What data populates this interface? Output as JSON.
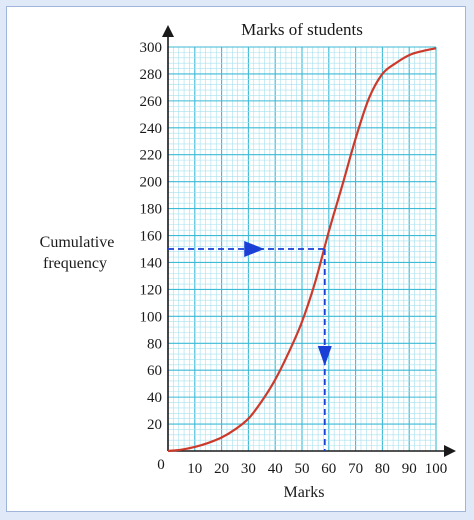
{
  "chart_data": {
    "type": "line",
    "title": "Marks of students",
    "xlabel": "Marks",
    "ylabel_lines": [
      "Cumulative",
      "frequency"
    ],
    "origin_label": "0",
    "xlim": [
      0,
      100
    ],
    "ylim": [
      0,
      300
    ],
    "x_ticks": [
      10,
      20,
      30,
      40,
      50,
      60,
      70,
      80,
      90,
      100
    ],
    "y_ticks": [
      20,
      40,
      60,
      80,
      100,
      120,
      140,
      160,
      180,
      200,
      220,
      240,
      260,
      280,
      300
    ],
    "grid": true,
    "series": [
      {
        "color": "#cc3a2b",
        "x": [
          0,
          5,
          10,
          15,
          20,
          25,
          30,
          35,
          40,
          45,
          50,
          55,
          60,
          65,
          70,
          75,
          80,
          85,
          90,
          95,
          100
        ],
        "y": [
          0,
          1,
          3,
          6,
          10,
          16,
          24,
          37,
          53,
          73,
          96,
          126,
          163,
          197,
          232,
          262,
          280,
          288,
          294,
          297,
          299
        ]
      }
    ],
    "guide": {
      "y_value": 150,
      "x_value": 58.5,
      "color": "#1a3fd6"
    }
  },
  "colors": {
    "grid_minor": "#a6e0ee",
    "grid_major": "#3cbad6",
    "axis": "#1a1a1a"
  }
}
